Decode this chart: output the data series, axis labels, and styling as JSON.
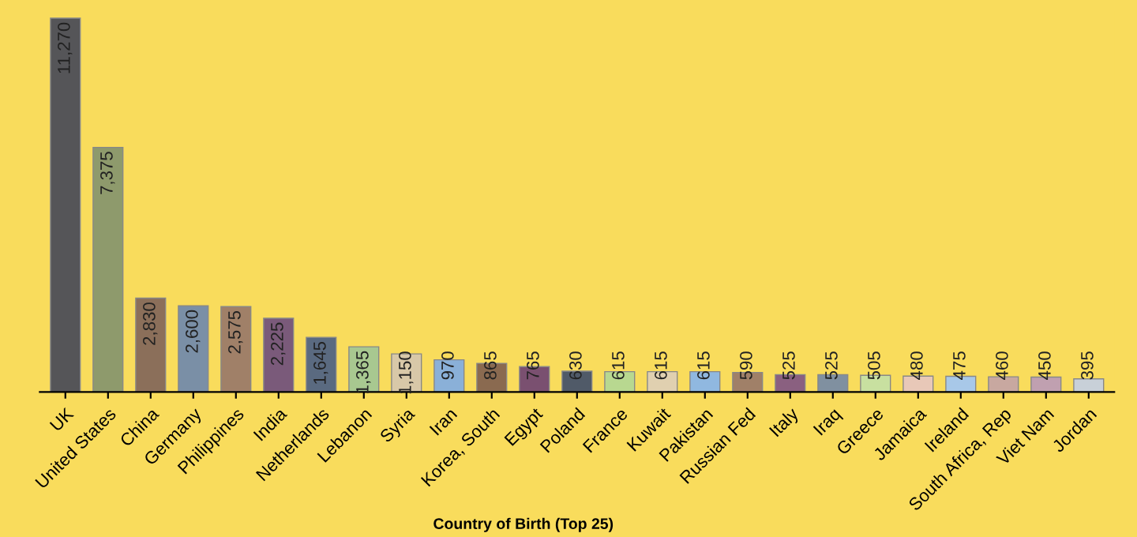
{
  "chart_data": {
    "type": "bar",
    "xlabel": "Country of Birth (Top 25)",
    "categories": [
      "UK",
      "United States",
      "China",
      "Germany",
      "Philippines",
      "India",
      "Netherlands",
      "Lebanon",
      "Syria",
      "Iran",
      "Korea, South",
      "Egypt",
      "Poland",
      "France",
      "Kuwait",
      "Pakistan",
      "Russian Fed",
      "Italy",
      "Iraq",
      "Greece",
      "Jamaica",
      "Ireland",
      "South Africa, Rep",
      "Viet Nam",
      "Jordan"
    ],
    "values": [
      11270,
      7375,
      2830,
      2600,
      2575,
      2225,
      1645,
      1365,
      1150,
      970,
      865,
      765,
      630,
      615,
      615,
      615,
      590,
      525,
      525,
      505,
      480,
      475,
      460,
      450,
      395
    ],
    "colors": [
      "#555558",
      "#8e9a6c",
      "#8b6f5a",
      "#7a8fa6",
      "#a08068",
      "#7a5a7a",
      "#5a6a80",
      "#a8c890",
      "#d8c8a8",
      "#8ab0d8",
      "#8a6a50",
      "#7a5070",
      "#505a68",
      "#b8d890",
      "#e0d0b0",
      "#90b8e0",
      "#a08068",
      "#8a6080",
      "#8090a0",
      "#c8e0a0",
      "#e8c8b8",
      "#a8c8e8",
      "#c8a8a0",
      "#c0a0b0",
      "#c8d0d8"
    ],
    "value_labels": [
      "11,270",
      "7,375",
      "2,830",
      "2,600",
      "2,575",
      "2,225",
      "1,645",
      "1,365",
      "1,150",
      "970",
      "865",
      "765",
      "630",
      "615",
      "615",
      "615",
      "590",
      "525",
      "525",
      "505",
      "480",
      "475",
      "460",
      "450",
      "395"
    ],
    "grid": false,
    "legend": false
  }
}
